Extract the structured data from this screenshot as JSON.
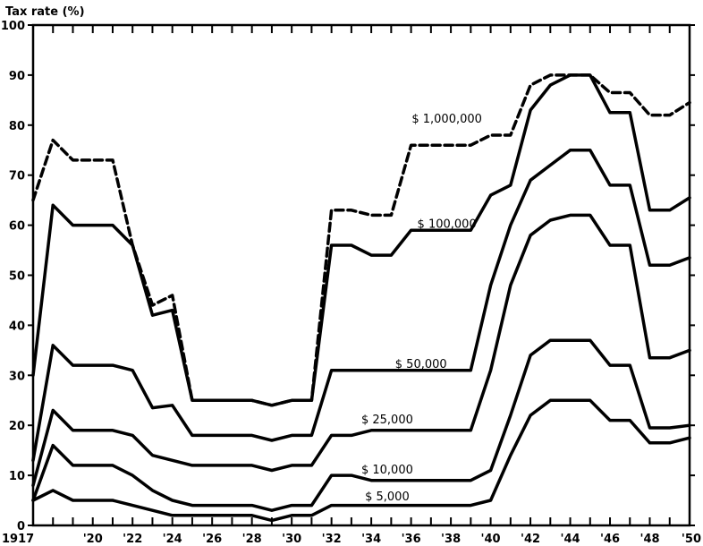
{
  "chart_data": {
    "type": "line",
    "title": "",
    "ylabel": "Tax rate (%)",
    "xlabel": "",
    "ylim": [
      0,
      100
    ],
    "xlim": [
      1917,
      1950
    ],
    "yticks": [
      0,
      10,
      20,
      30,
      40,
      50,
      60,
      70,
      80,
      90,
      100
    ],
    "x_tick_labels": [
      {
        "x": 1917,
        "label": "1917"
      },
      {
        "x": 1920,
        "label": "'20"
      },
      {
        "x": 1922,
        "label": "'22"
      },
      {
        "x": 1924,
        "label": "'24"
      },
      {
        "x": 1926,
        "label": "'26"
      },
      {
        "x": 1928,
        "label": "'28"
      },
      {
        "x": 1930,
        "label": "'30"
      },
      {
        "x": 1932,
        "label": "'32"
      },
      {
        "x": 1934,
        "label": "'34"
      },
      {
        "x": 1936,
        "label": "'36"
      },
      {
        "x": 1938,
        "label": "'38"
      },
      {
        "x": 1940,
        "label": "'40"
      },
      {
        "x": 1942,
        "label": "'42"
      },
      {
        "x": 1944,
        "label": "'44"
      },
      {
        "x": 1946,
        "label": "'46"
      },
      {
        "x": 1948,
        "label": "'48"
      },
      {
        "x": 1950,
        "label": "'50"
      }
    ],
    "series": [
      {
        "name": "$ 1,000,000",
        "style": "dashed",
        "label_at": {
          "x": 1937.8,
          "y": 80.5
        },
        "x": [
          1917,
          1918,
          1919,
          1920,
          1921,
          1922,
          1923,
          1924,
          1925,
          1926,
          1927,
          1928,
          1929,
          1930,
          1931,
          1932,
          1933,
          1934,
          1935,
          1936,
          1937,
          1938,
          1939,
          1940,
          1941,
          1942,
          1943,
          1944,
          1945,
          1946,
          1947,
          1948,
          1949,
          1950
        ],
        "y": [
          65,
          77,
          73,
          73,
          73,
          56,
          44,
          46,
          25,
          25,
          25,
          25,
          24,
          25,
          25,
          63,
          63,
          62,
          62,
          76,
          76,
          76,
          76,
          78,
          78,
          88,
          90,
          90,
          90,
          86.5,
          86.5,
          82,
          82,
          84.5
        ]
      },
      {
        "name": "$ 100,000",
        "style": "solid",
        "label_at": {
          "x": 1937.8,
          "y": 59.5
        },
        "x": [
          1917,
          1918,
          1919,
          1920,
          1921,
          1922,
          1923,
          1924,
          1925,
          1926,
          1927,
          1928,
          1929,
          1930,
          1931,
          1932,
          1933,
          1934,
          1935,
          1936,
          1937,
          1938,
          1939,
          1940,
          1941,
          1942,
          1943,
          1944,
          1945,
          1946,
          1947,
          1948,
          1949,
          1950
        ],
        "y": [
          30,
          64,
          60,
          60,
          60,
          56,
          42,
          43,
          25,
          25,
          25,
          25,
          24,
          25,
          25,
          56,
          56,
          54,
          54,
          59,
          59,
          59,
          59,
          66,
          68,
          83,
          88,
          90,
          90,
          82.5,
          82.5,
          63,
          63,
          65.5
        ]
      },
      {
        "name": "$ 50,000",
        "style": "solid",
        "label_at": {
          "x": 1936.5,
          "y": 31.5
        },
        "x": [
          1917,
          1918,
          1919,
          1920,
          1921,
          1922,
          1923,
          1924,
          1925,
          1926,
          1927,
          1928,
          1929,
          1930,
          1931,
          1932,
          1933,
          1934,
          1935,
          1936,
          1937,
          1938,
          1939,
          1940,
          1941,
          1942,
          1943,
          1944,
          1945,
          1946,
          1947,
          1948,
          1949,
          1950
        ],
        "y": [
          13,
          36,
          32,
          32,
          32,
          31,
          23.5,
          24,
          18,
          18,
          18,
          18,
          17,
          18,
          18,
          31,
          31,
          31,
          31,
          31,
          31,
          31,
          31,
          48,
          60,
          69,
          72,
          75,
          75,
          68,
          68,
          52,
          52,
          53.5
        ]
      },
      {
        "name": "$ 25,000",
        "style": "solid",
        "label_at": {
          "x": 1934.8,
          "y": 20.4
        },
        "x": [
          1917,
          1918,
          1919,
          1920,
          1921,
          1922,
          1923,
          1924,
          1925,
          1926,
          1927,
          1928,
          1929,
          1930,
          1931,
          1932,
          1933,
          1934,
          1935,
          1936,
          1937,
          1938,
          1939,
          1940,
          1941,
          1942,
          1943,
          1944,
          1945,
          1946,
          1947,
          1948,
          1949,
          1950
        ],
        "y": [
          8,
          23,
          19,
          19,
          19,
          18,
          14,
          13,
          12,
          12,
          12,
          12,
          11,
          12,
          12,
          18,
          18,
          19,
          19,
          19,
          19,
          19,
          19,
          31,
          48,
          58,
          61,
          62,
          62,
          56,
          56,
          33.5,
          33.5,
          35
        ]
      },
      {
        "name": "$ 10,000",
        "style": "solid",
        "label_at": {
          "x": 1934.8,
          "y": 10.4
        },
        "x": [
          1917,
          1918,
          1919,
          1920,
          1921,
          1922,
          1923,
          1924,
          1925,
          1926,
          1927,
          1928,
          1929,
          1930,
          1931,
          1932,
          1933,
          1934,
          1935,
          1936,
          1937,
          1938,
          1939,
          1940,
          1941,
          1942,
          1943,
          1944,
          1945,
          1946,
          1947,
          1948,
          1949,
          1950
        ],
        "y": [
          5,
          16,
          12,
          12,
          12,
          10,
          7,
          5,
          4,
          4,
          4,
          4,
          3,
          4,
          4,
          10,
          10,
          9,
          9,
          9,
          9,
          9,
          9,
          11,
          22,
          34,
          37,
          37,
          37,
          32,
          32,
          19.5,
          19.5,
          20
        ]
      },
      {
        "name": "$ 5,000",
        "style": "solid",
        "label_at": {
          "x": 1934.8,
          "y": 5.0
        },
        "x": [
          1917,
          1918,
          1919,
          1920,
          1921,
          1922,
          1923,
          1924,
          1925,
          1926,
          1927,
          1928,
          1929,
          1930,
          1931,
          1932,
          1933,
          1934,
          1935,
          1936,
          1937,
          1938,
          1939,
          1940,
          1941,
          1942,
          1943,
          1944,
          1945,
          1946,
          1947,
          1948,
          1949,
          1950
        ],
        "y": [
          5,
          7,
          5,
          5,
          5,
          4,
          3,
          2,
          2,
          2,
          2,
          2,
          1,
          2,
          2,
          4,
          4,
          4,
          4,
          4,
          4,
          4,
          4,
          5,
          14,
          22,
          25,
          25,
          25,
          21,
          21,
          16.5,
          16.5,
          17.5
        ]
      }
    ],
    "grid": false,
    "legend": "inline"
  }
}
